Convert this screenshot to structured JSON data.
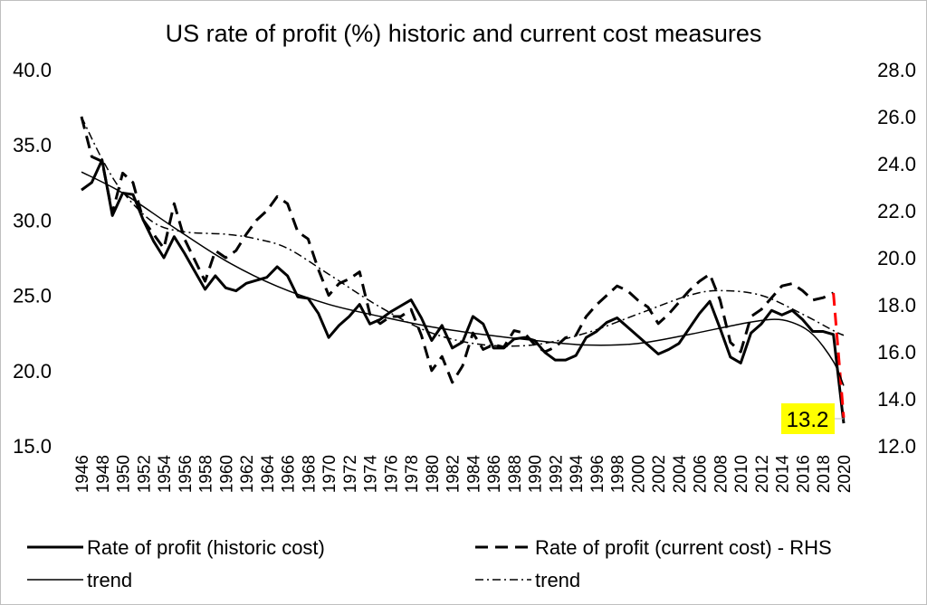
{
  "chart_data": {
    "type": "line",
    "title": "US rate of profit (%) historic and current cost measures",
    "xlabel": "",
    "ylabel_left": "",
    "ylabel_right": "",
    "ylim_left": [
      15,
      40
    ],
    "yticks_left": [
      "15.0",
      "20.0",
      "25.0",
      "30.0",
      "35.0",
      "40.0"
    ],
    "ylim_right": [
      12,
      28
    ],
    "yticks_right": [
      "12.0",
      "14.0",
      "16.0",
      "18.0",
      "20.0",
      "22.0",
      "24.0",
      "26.0",
      "28.0"
    ],
    "x_start": 1946,
    "x_end": 2020,
    "xtick_step": 2,
    "grid": false,
    "legend_position": "bottom",
    "series": [
      {
        "name": "Rate of profit (historic cost)",
        "axis": "left",
        "style": "solid-thick",
        "values": [
          32.0,
          32.5,
          34.0,
          30.3,
          31.8,
          31.7,
          30.0,
          28.6,
          27.5,
          28.9,
          27.8,
          26.6,
          25.4,
          26.3,
          25.5,
          25.3,
          25.8,
          26.0,
          26.2,
          26.9,
          26.3,
          24.9,
          24.8,
          23.8,
          22.2,
          23.0,
          23.6,
          24.4,
          23.1,
          23.4,
          23.9,
          24.3,
          24.7,
          23.5,
          22.0,
          23.0,
          21.5,
          21.9,
          23.6,
          23.1,
          21.5,
          21.5,
          22.1,
          22.2,
          22.0,
          21.2,
          20.7,
          20.7,
          21.0,
          22.2,
          22.6,
          23.2,
          23.5,
          22.9,
          22.3,
          21.7,
          21.1,
          21.4,
          21.8,
          22.8,
          23.8,
          24.6,
          22.8,
          20.9,
          20.5,
          22.5,
          23.1,
          24.0,
          23.7,
          24.0,
          23.4,
          22.6,
          22.6,
          22.4,
          16.5
        ]
      },
      {
        "name": "Rate of profit (current cost) - RHS",
        "axis": "right",
        "style": "dashed-thick",
        "last_segment_color": "#ff0000",
        "values": [
          26.0,
          24.3,
          24.1,
          21.9,
          23.6,
          23.2,
          21.6,
          21.0,
          20.4,
          22.3,
          20.8,
          19.9,
          19.0,
          20.3,
          20.0,
          20.3,
          21.0,
          21.6,
          22.0,
          22.6,
          22.3,
          21.1,
          20.8,
          19.5,
          18.4,
          18.9,
          19.1,
          19.4,
          17.6,
          17.2,
          17.5,
          17.5,
          17.8,
          16.7,
          15.2,
          15.8,
          14.7,
          15.4,
          16.8,
          16.1,
          16.3,
          16.2,
          16.9,
          16.8,
          16.3,
          16.0,
          16.2,
          16.6,
          16.7,
          17.5,
          18.0,
          18.4,
          18.8,
          18.6,
          18.2,
          17.9,
          17.2,
          17.6,
          18.1,
          18.6,
          19.0,
          19.3,
          18.2,
          16.4,
          16.0,
          17.5,
          17.8,
          18.3,
          18.8,
          18.9,
          18.6,
          18.2,
          18.3,
          18.5,
          13.2
        ]
      },
      {
        "name": "trend",
        "axis": "left",
        "style": "solid-thin",
        "points": [
          [
            1946,
            33.2
          ],
          [
            1950,
            31.8
          ],
          [
            1955,
            29.5
          ],
          [
            1960,
            27.3
          ],
          [
            1965,
            25.6
          ],
          [
            1970,
            24.4
          ],
          [
            1975,
            23.6
          ],
          [
            1980,
            22.9
          ],
          [
            1985,
            22.4
          ],
          [
            1990,
            22.0
          ],
          [
            1995,
            21.7
          ],
          [
            2000,
            21.8
          ],
          [
            2005,
            22.4
          ],
          [
            2010,
            23.1
          ],
          [
            2013,
            23.4
          ],
          [
            2015,
            23.2
          ],
          [
            2017,
            22.4
          ],
          [
            2019,
            20.6
          ],
          [
            2020,
            19.0
          ]
        ]
      },
      {
        "name": "trend",
        "axis": "right",
        "style": "dash-dot",
        "points": [
          [
            1946,
            26.0
          ],
          [
            1948,
            24.2
          ],
          [
            1950,
            22.8
          ],
          [
            1953,
            21.5
          ],
          [
            1956,
            21.1
          ],
          [
            1960,
            21.0
          ],
          [
            1963,
            20.8
          ],
          [
            1966,
            20.4
          ],
          [
            1970,
            19.3
          ],
          [
            1975,
            17.9
          ],
          [
            1980,
            16.8
          ],
          [
            1985,
            16.3
          ],
          [
            1990,
            16.3
          ],
          [
            1995,
            16.8
          ],
          [
            2000,
            17.6
          ],
          [
            2005,
            18.4
          ],
          [
            2008,
            18.6
          ],
          [
            2012,
            18.4
          ],
          [
            2016,
            17.6
          ],
          [
            2019,
            16.9
          ],
          [
            2020,
            16.7
          ]
        ]
      }
    ],
    "annotations": [
      {
        "text": "13.2",
        "year": 2020,
        "series": 1,
        "background": "#ffff00"
      }
    ]
  }
}
